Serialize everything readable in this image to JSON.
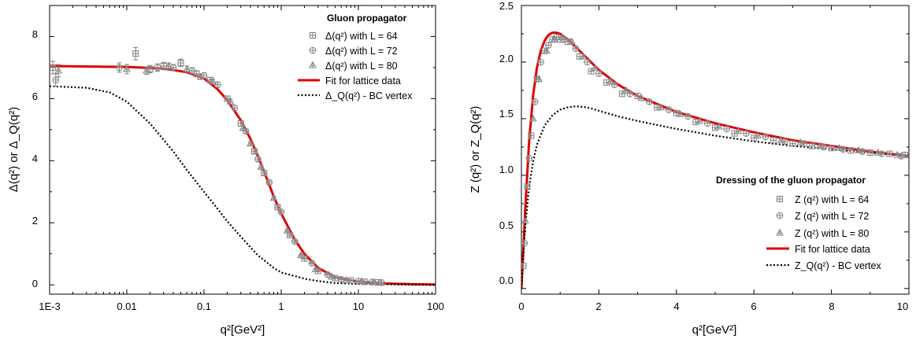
{
  "colors": {
    "fit": "#e00000",
    "marker": "#808080",
    "bc": "#000000",
    "axis": "#000000"
  },
  "chart_data": [
    {
      "type": "scatter",
      "xscale": "log",
      "xlim": [
        0.001,
        100
      ],
      "ylim": [
        -0.3,
        9
      ],
      "xticks": [
        0.001,
        0.01,
        0.1,
        1,
        10,
        100
      ],
      "xtick_labels": [
        "1E-3",
        "0.01",
        "0.1",
        "1",
        "10",
        "100"
      ],
      "yticks": [
        0,
        2,
        4,
        6,
        8
      ],
      "ytick_labels": [
        "0",
        "2",
        "4",
        "6",
        "8"
      ],
      "xlabel": "q²[GeV²]",
      "ylabel": "Δ(q²) or Δ_Q(q²)",
      "legend": {
        "position": "top-right",
        "title": "Gluon propagator",
        "entries": [
          {
            "label": "Δ(q²) with L = 64",
            "marker": "square"
          },
          {
            "label": "Δ(q²) with L = 72",
            "marker": "circle"
          },
          {
            "label": "Δ(q²) with L = 80",
            "marker": "triangle"
          },
          {
            "label": "Fit for lattice data",
            "style": "solid-red"
          },
          {
            "label": "Δ_Q(q²) - BC vertex",
            "style": "dotted-black"
          }
        ]
      },
      "series": [
        {
          "name": "Δ(q²) with L = 64",
          "marker": "square",
          "x": [
            0.0011,
            0.013,
            0.02,
            0.03,
            0.05,
            0.08,
            0.12,
            0.2,
            0.3,
            0.45,
            0.6,
            0.9,
            1.3,
            2,
            3,
            5,
            8,
            12,
            18
          ],
          "y": [
            7.0,
            7.45,
            6.95,
            7.05,
            7.15,
            6.8,
            6.6,
            6.0,
            5.2,
            4.3,
            3.6,
            2.5,
            1.6,
            0.85,
            0.45,
            0.22,
            0.14,
            0.1,
            0.08
          ],
          "err": [
            0.2,
            0.2,
            0.12,
            0.12,
            0.12,
            0.1,
            0.08,
            0.08,
            0.08,
            0.06,
            0.06,
            0.05,
            0.04,
            0.03,
            0.02,
            0.02,
            0.02,
            0.02,
            0.02
          ]
        },
        {
          "name": "Δ(q²) with L = 72",
          "marker": "circle",
          "x": [
            0.0012,
            0.008,
            0.025,
            0.04,
            0.07,
            0.1,
            0.15,
            0.25,
            0.35,
            0.5,
            0.7,
            1.0,
            1.5,
            2.5,
            4,
            6,
            10,
            15,
            20
          ],
          "y": [
            6.6,
            7.0,
            7.0,
            7.0,
            6.9,
            6.75,
            6.45,
            5.7,
            4.95,
            4.05,
            3.3,
            2.35,
            1.4,
            0.7,
            0.33,
            0.18,
            0.12,
            0.09,
            0.07
          ],
          "err": [
            0.2,
            0.15,
            0.12,
            0.1,
            0.1,
            0.08,
            0.08,
            0.08,
            0.06,
            0.06,
            0.05,
            0.05,
            0.04,
            0.03,
            0.02,
            0.02,
            0.02,
            0.02,
            0.02
          ]
        },
        {
          "name": "Δ(q²) with L = 80",
          "marker": "triangle",
          "x": [
            0.0013,
            0.01,
            0.018,
            0.035,
            0.06,
            0.09,
            0.13,
            0.22,
            0.32,
            0.4,
            0.55,
            0.8,
            1.2,
            1.8,
            2.8,
            4.5,
            7,
            11,
            16
          ],
          "y": [
            6.9,
            6.95,
            6.9,
            7.05,
            6.95,
            6.7,
            6.55,
            5.9,
            5.05,
            4.55,
            3.8,
            2.8,
            1.75,
            0.95,
            0.5,
            0.26,
            0.15,
            0.11,
            0.08
          ],
          "err": [
            0.2,
            0.15,
            0.12,
            0.1,
            0.1,
            0.08,
            0.08,
            0.08,
            0.06,
            0.06,
            0.05,
            0.05,
            0.04,
            0.03,
            0.02,
            0.02,
            0.02,
            0.02,
            0.02
          ]
        },
        {
          "name": "Fit for lattice data",
          "style": "solid-red",
          "x": [
            0.001,
            0.01,
            0.03,
            0.06,
            0.1,
            0.15,
            0.2,
            0.3,
            0.4,
            0.5,
            0.6,
            0.8,
            1,
            1.5,
            2,
            3,
            5,
            10,
            20,
            50,
            100
          ],
          "y": [
            7.05,
            7.02,
            6.97,
            6.85,
            6.65,
            6.3,
            5.95,
            5.3,
            4.7,
            4.15,
            3.65,
            2.85,
            2.3,
            1.45,
            1.0,
            0.55,
            0.25,
            0.1,
            0.05,
            0.02,
            0.01
          ]
        },
        {
          "name": "Δ_Q(q²) - BC vertex",
          "style": "dotted-black",
          "x": [
            0.001,
            0.003,
            0.006,
            0.01,
            0.02,
            0.04,
            0.06,
            0.1,
            0.15,
            0.2,
            0.3,
            0.5,
            0.8,
            1,
            2,
            3,
            5,
            10,
            100
          ],
          "y": [
            6.4,
            6.35,
            6.2,
            5.9,
            5.2,
            4.3,
            3.7,
            3.0,
            2.45,
            2.05,
            1.55,
            0.95,
            0.55,
            0.4,
            0.2,
            0.12,
            0.06,
            0.03,
            0.0
          ]
        }
      ]
    },
    {
      "type": "scatter",
      "xscale": "linear",
      "xlim": [
        0,
        10
      ],
      "ylim": [
        -0.05,
        2.5
      ],
      "xticks": [
        0,
        2,
        4,
        6,
        8,
        10
      ],
      "xtick_labels": [
        "0",
        "2",
        "4",
        "6",
        "8",
        "10"
      ],
      "yticks": [
        0,
        0.5,
        1,
        1.5,
        2,
        2.5
      ],
      "ytick_labels": [
        "0.0",
        "0.5",
        "1.0",
        "1.5",
        "2.0",
        "2.5"
      ],
      "xlabel": "q²[GeV²]",
      "ylabel": "Z (q²) or Z_Q(q²)",
      "legend": {
        "position": "bottom-right",
        "title": "Dressing of the gluon propagator",
        "entries": [
          {
            "label": "Z (q²) with L = 64",
            "marker": "square"
          },
          {
            "label": "Z (q²) with L = 72",
            "marker": "circle"
          },
          {
            "label": "Z (q²) with L = 80",
            "marker": "triangle"
          },
          {
            "label": "Fit for lattice data",
            "style": "solid-red"
          },
          {
            "label": "Z_Q(q²) - BC vertex",
            "style": "dotted-black"
          }
        ]
      },
      "series": [
        {
          "name": "Z (q²) with L = 64",
          "marker": "square",
          "x": [
            0.05,
            0.15,
            0.25,
            0.4,
            0.6,
            0.8,
            1.0,
            1.2,
            1.5,
            1.8,
            2.2,
            2.6,
            3.0,
            3.5,
            4.0,
            4.5,
            5.0,
            5.5,
            6.0,
            6.5,
            7.0,
            7.5,
            8.0,
            8.5,
            9.0,
            9.5,
            9.9
          ],
          "y": [
            0.2,
            0.9,
            1.35,
            1.85,
            2.1,
            2.2,
            2.2,
            2.18,
            2.05,
            1.92,
            1.82,
            1.72,
            1.7,
            1.6,
            1.55,
            1.47,
            1.42,
            1.37,
            1.33,
            1.31,
            1.28,
            1.26,
            1.24,
            1.22,
            1.2,
            1.19,
            1.18
          ]
        },
        {
          "name": "Z (q²) with L = 72",
          "marker": "circle",
          "x": [
            0.08,
            0.2,
            0.35,
            0.5,
            0.7,
            0.9,
            1.1,
            1.4,
            1.7,
            2.0,
            2.4,
            2.8,
            3.3,
            3.8,
            4.3,
            4.8,
            5.3,
            5.8,
            6.3,
            6.8,
            7.3,
            7.8,
            8.3,
            8.8,
            9.3,
            9.8
          ],
          "y": [
            0.4,
            1.15,
            1.65,
            2.0,
            2.15,
            2.22,
            2.2,
            2.12,
            2.0,
            1.9,
            1.8,
            1.72,
            1.65,
            1.58,
            1.52,
            1.46,
            1.41,
            1.37,
            1.34,
            1.3,
            1.28,
            1.25,
            1.23,
            1.21,
            1.19,
            1.17
          ]
        },
        {
          "name": "Z (q²) with L = 80",
          "marker": "triangle",
          "x": [
            0.1,
            0.3,
            0.45,
            0.65,
            0.85,
            1.05,
            1.3,
            1.6,
            1.9,
            2.3,
            2.7,
            3.1,
            3.6,
            4.1,
            4.6,
            5.1,
            5.6,
            6.1,
            6.7,
            7.2,
            7.7,
            8.2,
            8.7,
            9.2,
            9.7
          ],
          "y": [
            0.6,
            1.5,
            1.85,
            2.1,
            2.2,
            2.22,
            2.18,
            2.05,
            1.95,
            1.83,
            1.75,
            1.68,
            1.6,
            1.54,
            1.48,
            1.43,
            1.39,
            1.35,
            1.31,
            1.29,
            1.26,
            1.24,
            1.22,
            1.2,
            1.18
          ]
        },
        {
          "name": "Fit for lattice data",
          "style": "solid-red",
          "x": [
            0.0,
            0.05,
            0.1,
            0.2,
            0.3,
            0.4,
            0.5,
            0.6,
            0.7,
            0.8,
            0.9,
            1.0,
            1.2,
            1.5,
            2.0,
            2.5,
            3.0,
            4.0,
            5.0,
            6.0,
            7.0,
            8.0,
            9.0,
            10.0
          ],
          "y": [
            0.0,
            0.35,
            0.7,
            1.3,
            1.7,
            1.95,
            2.1,
            2.19,
            2.24,
            2.26,
            2.26,
            2.25,
            2.2,
            2.1,
            1.93,
            1.8,
            1.7,
            1.56,
            1.46,
            1.38,
            1.31,
            1.26,
            1.21,
            1.17
          ]
        },
        {
          "name": "Z_Q(q²) - BC vertex",
          "style": "dotted-black",
          "x": [
            0.0,
            0.05,
            0.1,
            0.2,
            0.3,
            0.4,
            0.6,
            0.8,
            1.0,
            1.2,
            1.4,
            1.7,
            2.0,
            2.5,
            3.0,
            4.0,
            5.0,
            6.0,
            7.0,
            8.0,
            9.0,
            10.0
          ],
          "y": [
            0.0,
            0.3,
            0.55,
            0.9,
            1.12,
            1.27,
            1.44,
            1.53,
            1.58,
            1.6,
            1.61,
            1.6,
            1.57,
            1.52,
            1.48,
            1.41,
            1.35,
            1.3,
            1.26,
            1.23,
            1.2,
            1.17
          ]
        }
      ]
    }
  ]
}
